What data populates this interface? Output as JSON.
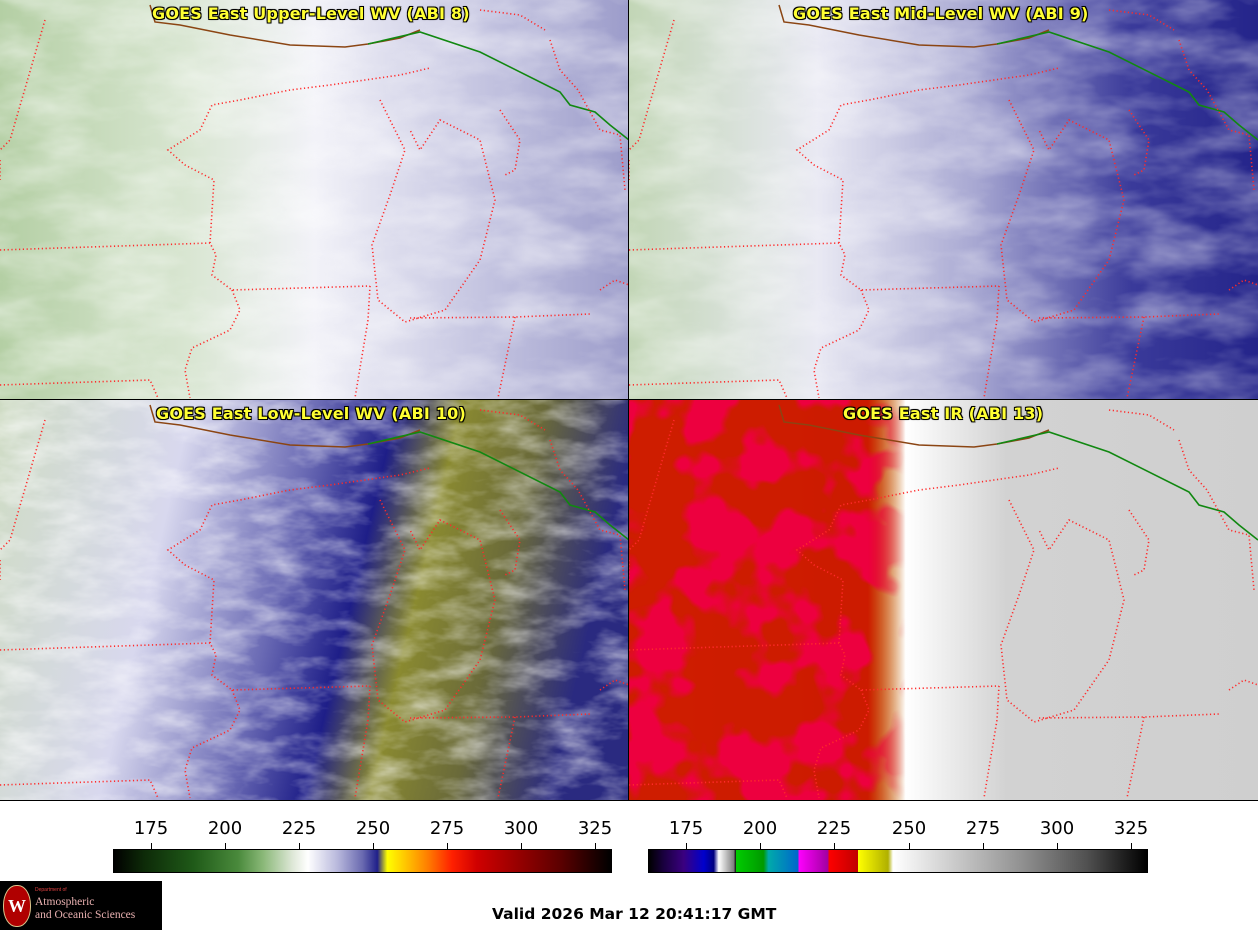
{
  "panels": [
    {
      "title": "GOES East Upper-Level WV (ABI 8)"
    },
    {
      "title": "GOES East Mid-Level WV (ABI 9)"
    },
    {
      "title": "GOES East Low-Level WV (ABI 10)"
    },
    {
      "title": "GOES East IR (ABI 13)"
    }
  ],
  "colorbars": [
    {
      "ticks": [
        "175",
        "200",
        "225",
        "250",
        "275",
        "300",
        "325"
      ]
    },
    {
      "ticks": [
        "175",
        "200",
        "225",
        "250",
        "275",
        "300",
        "325"
      ]
    }
  ],
  "logo": {
    "dept": "Department of",
    "line1": "Atmospheric",
    "line2": "and Oceanic Sciences",
    "seal": "W"
  },
  "valid_time": "Valid 2026 Mar 12 20:41:17 GMT"
}
